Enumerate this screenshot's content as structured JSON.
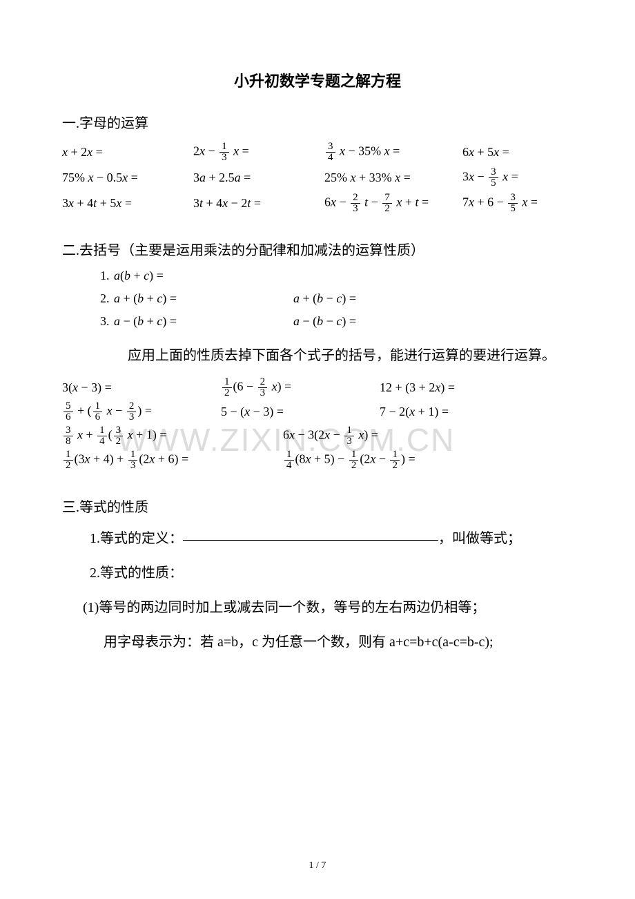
{
  "title": "小升初数学专题之解方程",
  "watermark": "WWW.ZIXIN.COM.CN",
  "page_footer": "1 / 7",
  "sec1": {
    "heading": "一.字母的运算",
    "rows": [
      [
        "x + 2x =",
        "2x − {1/3} x =",
        "{3/4} x − 35% x =",
        "6x + 5x ="
      ],
      [
        "75% x − 0.5x =",
        "3a + 2.5a =",
        "25% x + 33% x =",
        "3x − {3/5} x ="
      ],
      [
        "3x + 4t + 5x =",
        "3t + 4x − 2t =",
        "6x − {2/3} t − {7/2} x + t =",
        "7x + 6 − {3/5} x ="
      ]
    ]
  },
  "sec2": {
    "heading": "二.去括号（主要是运用乘法的分配律和加减法的运算性质）",
    "list": [
      {
        "n": "1.",
        "left": "a(b + c) ="
      },
      {
        "n": "2.",
        "left": "a + (b + c) =",
        "right": "a + (b − c) ="
      },
      {
        "n": "3.",
        "left": "a − (b + c) =",
        "right": "a − (b − c) ="
      }
    ],
    "para": "应用上面的性质去掉下面各个式子的括号，能进行运算的要进行运算。",
    "grid3": [
      [
        "3(x − 3) =",
        "{1/2}(6 − {2/3} x) =",
        "12 + (3 + 2x) ="
      ],
      [
        "{5/6} + ({1/6} x − {2/3}) =",
        "5 − (x − 3) =",
        "7 − 2(x + 1) ="
      ]
    ],
    "grid2": [
      [
        "{3/8} x + {1/4}({3/2} x + 1) =",
        "6x − 3(2x − {1/3} x) ="
      ],
      [
        "{1/2}(3x + 4) + {1/3}(2x + 6) =",
        "{1/4}(8x + 5) − {1/2}(2x − {1/2}) ="
      ]
    ]
  },
  "sec3": {
    "heading": "三.等式的性质",
    "line1_a": "1.等式的定义：",
    "line1_b": "，叫做等式；",
    "line2": "2.等式的性质：",
    "line3": "(1)等号的两边同时加上或减去同一个数，等号的左右两边仍相等；",
    "line4": "用字母表示为：若 a=b，c 为任意一个数，则有 a+c=b+c(a-c=b-c);"
  }
}
